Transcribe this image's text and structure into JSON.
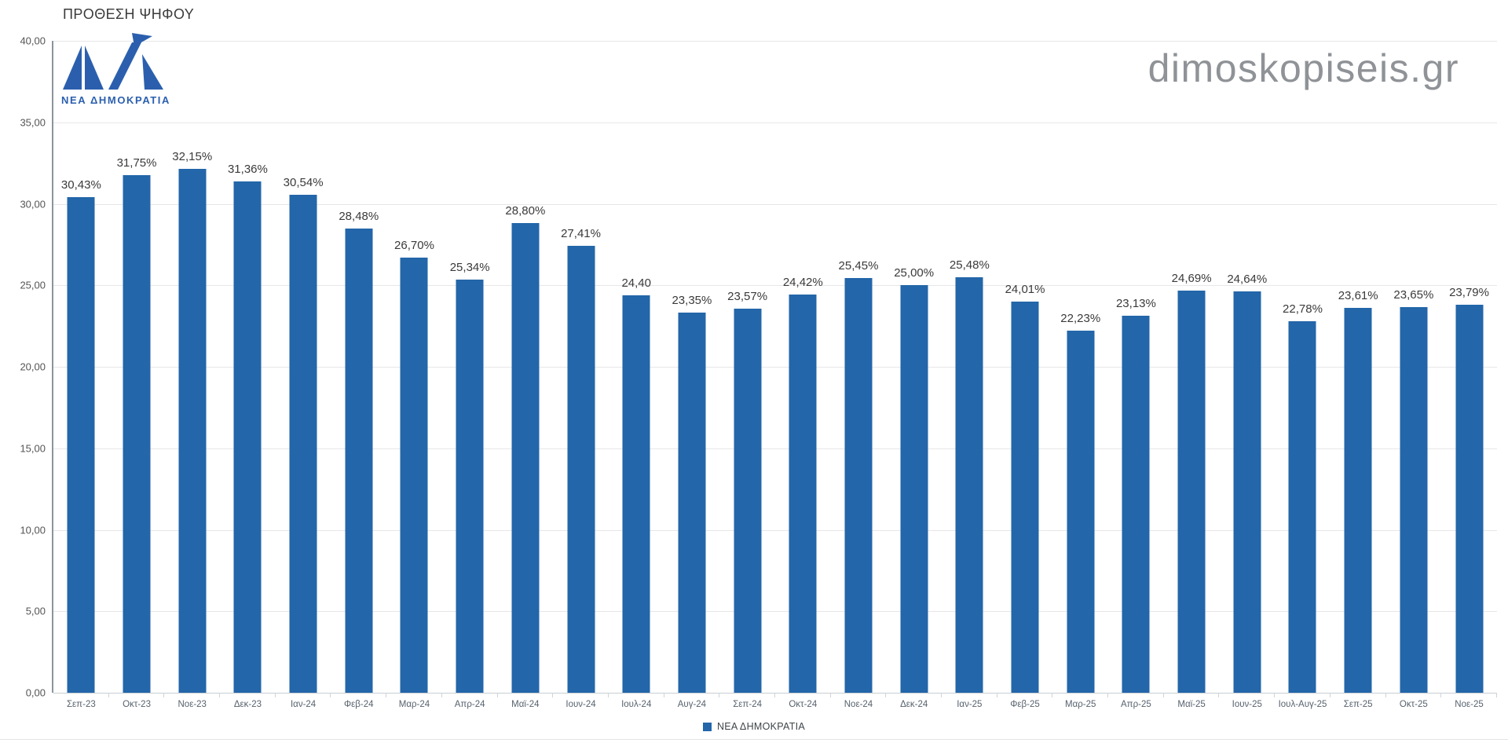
{
  "title": "ΠΡΟΘΕΣΗ ΨΗΦΟΥ",
  "watermark": "dimoskopiseis.gr",
  "logo": {
    "party_text": "ΝΕΑ ΔΗΜΟΚΡΑΤΙΑ",
    "color": "#2b5fae"
  },
  "legend": {
    "label": "ΝΕΑ ΔΗΜΟΚΡΑΤΙΑ",
    "swatch_color": "#2366a9"
  },
  "colors": {
    "bar": "#2366a9",
    "gridline": "#e7e7e7",
    "axis_line": "#8b949c",
    "value_label": "#3a3a3a",
    "x_label": "#57626e",
    "watermark": "#8f9296"
  },
  "chart_data": {
    "type": "bar",
    "title": "ΠΡΟΘΕΣΗ ΨΗΦΟΥ",
    "series_name": "ΝΕΑ ΔΗΜΟΚΡΑΤΙΑ",
    "categories": [
      "Σεπ-23",
      "Οκτ-23",
      "Νοε-23",
      "Δεκ-23",
      "Ιαν-24",
      "Φεβ-24",
      "Μαρ-24",
      "Απρ-24",
      "Μαϊ-24",
      "Ιουν-24",
      "Ιουλ-24",
      "Αυγ-24",
      "Σεπ-24",
      "Οκτ-24",
      "Νοε-24",
      "Δεκ-24",
      "Ιαν-25",
      "Φεβ-25",
      "Μαρ-25",
      "Απρ-25",
      "Μαϊ-25",
      "Ιουν-25",
      "Ιουλ-Αυγ-25",
      "Σεπ-25",
      "Οκτ-25",
      "Νοε-25"
    ],
    "values": [
      30.43,
      31.75,
      32.15,
      31.36,
      30.54,
      28.48,
      26.7,
      25.34,
      28.8,
      27.41,
      24.4,
      23.35,
      23.57,
      24.42,
      25.45,
      25.0,
      25.48,
      24.01,
      22.23,
      23.13,
      24.69,
      24.64,
      22.78,
      23.61,
      23.65,
      23.79
    ],
    "labels": [
      "30,43%",
      "31,75%",
      "32,15%",
      "31,36%",
      "30,54%",
      "28,48%",
      "26,70%",
      "25,34%",
      "28,80%",
      "27,41%",
      "24,40",
      "23,35%",
      "23,57%",
      "24,42%",
      "25,45%",
      "25,00%",
      "25,48%",
      "24,01%",
      "22,23%",
      "23,13%",
      "24,69%",
      "24,64%",
      "22,78%",
      "23,61%",
      "23,65%",
      "23,79%"
    ],
    "ylim": [
      0,
      40
    ],
    "yticks": [
      "40,00",
      "35,00",
      "30,00",
      "25,00",
      "20,00",
      "15,00",
      "10,00",
      "5,00",
      "0,00"
    ],
    "grid": true,
    "legend_position": "bottom"
  }
}
